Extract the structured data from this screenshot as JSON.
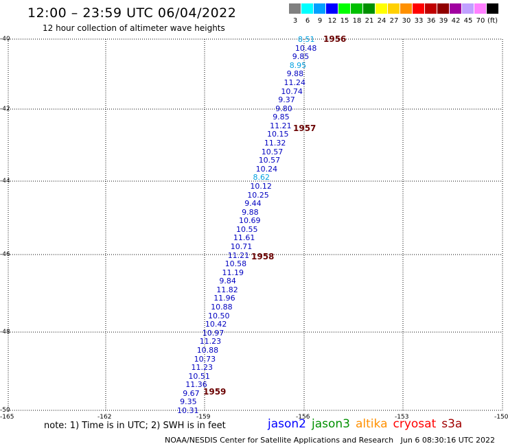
{
  "header": {
    "title": "12:00 – 23:59 UTC 06/04/2022",
    "subtitle": "12 hour collection of altimeter wave heights"
  },
  "legend": {
    "unit": "(ft)",
    "items": [
      {
        "label": "3",
        "color": "#808080"
      },
      {
        "label": "6",
        "color": "#00ffff"
      },
      {
        "label": "9",
        "color": "#00a0ff"
      },
      {
        "label": "12",
        "color": "#0000ff"
      },
      {
        "label": "15",
        "color": "#00ff00"
      },
      {
        "label": "18",
        "color": "#00c000"
      },
      {
        "label": "21",
        "color": "#009000"
      },
      {
        "label": "24",
        "color": "#ffff00"
      },
      {
        "label": "27",
        "color": "#ffd000"
      },
      {
        "label": "30",
        "color": "#ff9000"
      },
      {
        "label": "33",
        "color": "#ff0000"
      },
      {
        "label": "36",
        "color": "#c00000"
      },
      {
        "label": "39",
        "color": "#900000"
      },
      {
        "label": "42",
        "color": "#a000a0"
      },
      {
        "label": "45",
        "color": "#c0a0ff"
      },
      {
        "label": "70",
        "color": "#ff80ff"
      },
      {
        "label": "",
        "color": "#000000"
      }
    ]
  },
  "map": {
    "lat_labels": [
      "-40",
      "-42",
      "-44",
      "-46",
      "-48",
      "-50"
    ],
    "lon_labels": [
      "-165",
      "-162",
      "-159",
      "-156",
      "-153",
      "-150"
    ],
    "track_color_blue": "#0000c0",
    "track_color_cyan": "#00a0e0",
    "points": [
      {
        "v": "8.51",
        "c": "cyan"
      },
      {
        "v": "10.48",
        "c": "blue"
      },
      {
        "v": "9.85",
        "c": "blue"
      },
      {
        "v": "8.95",
        "c": "cyan"
      },
      {
        "v": "9.88",
        "c": "blue"
      },
      {
        "v": "11.24",
        "c": "blue"
      },
      {
        "v": "10.74",
        "c": "blue"
      },
      {
        "v": "9.37",
        "c": "blue"
      },
      {
        "v": "9.80",
        "c": "blue"
      },
      {
        "v": "9.85",
        "c": "blue"
      },
      {
        "v": "11.21",
        "c": "blue"
      },
      {
        "v": "10.15",
        "c": "blue"
      },
      {
        "v": "11.32",
        "c": "blue"
      },
      {
        "v": "10.57",
        "c": "blue"
      },
      {
        "v": "10.57",
        "c": "blue"
      },
      {
        "v": "10.24",
        "c": "blue"
      },
      {
        "v": "8.62",
        "c": "cyan"
      },
      {
        "v": "10.12",
        "c": "blue"
      },
      {
        "v": "10.25",
        "c": "blue"
      },
      {
        "v": "9.44",
        "c": "blue"
      },
      {
        "v": "9.88",
        "c": "blue"
      },
      {
        "v": "10.69",
        "c": "blue"
      },
      {
        "v": "10.55",
        "c": "blue"
      },
      {
        "v": "11.61",
        "c": "blue"
      },
      {
        "v": "10.71",
        "c": "blue"
      },
      {
        "v": "11.21",
        "c": "blue"
      },
      {
        "v": "10.58",
        "c": "blue"
      },
      {
        "v": "11.19",
        "c": "blue"
      },
      {
        "v": "9.84",
        "c": "blue"
      },
      {
        "v": "11.82",
        "c": "blue"
      },
      {
        "v": "11.96",
        "c": "blue"
      },
      {
        "v": "10.88",
        "c": "blue"
      },
      {
        "v": "10.50",
        "c": "blue"
      },
      {
        "v": "10.42",
        "c": "blue"
      },
      {
        "v": "10.97",
        "c": "blue"
      },
      {
        "v": "11.23",
        "c": "blue"
      },
      {
        "v": "10.88",
        "c": "blue"
      },
      {
        "v": "10.73",
        "c": "blue"
      },
      {
        "v": "11.23",
        "c": "blue"
      },
      {
        "v": "10.51",
        "c": "blue"
      },
      {
        "v": "11.36",
        "c": "blue"
      },
      {
        "v": "9.67",
        "c": "blue"
      },
      {
        "v": "9.35",
        "c": "blue"
      },
      {
        "v": "10.31",
        "c": "blue"
      }
    ],
    "time_stamps": [
      "1956",
      "1957",
      "1958",
      "1959"
    ]
  },
  "footer": {
    "note": "note: 1) Time is in UTC; 2) SWH is in feet",
    "satellites": [
      {
        "name": "jason2",
        "color": "#0000ff"
      },
      {
        "name": "jason3",
        "color": "#009000"
      },
      {
        "name": "altika",
        "color": "#ff9000"
      },
      {
        "name": "cryosat",
        "color": "#ff0000"
      },
      {
        "name": "s3a",
        "color": "#a00000"
      }
    ],
    "credit": "NOAA/NESDIS Center for Satellite Applications and Research",
    "generated": "Jun 6 08:30:16 UTC 2022"
  }
}
